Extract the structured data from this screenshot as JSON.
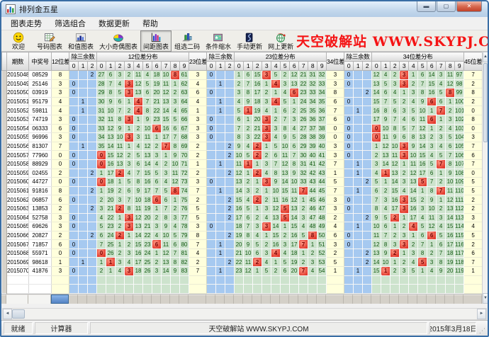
{
  "window": {
    "title": "排列金五星"
  },
  "menu": {
    "items": [
      "图表走势",
      "筛选组合",
      "数据更新",
      "帮助"
    ]
  },
  "toolbar": {
    "banner": "天空破解站 WWW.SKYPJ.COM",
    "banner_color": "#f51414",
    "buttons": [
      {
        "label": "欢迎",
        "icon": "welcome-smiley-icon",
        "active": false
      },
      {
        "label": "号码图表",
        "icon": "number-chart-icon",
        "active": false
      },
      {
        "label": "和值图表",
        "icon": "sum-chart-icon",
        "active": false
      },
      {
        "label": "大小奇偶图表",
        "icon": "size-parity-chart-icon",
        "active": false
      },
      {
        "label": "间距图表",
        "icon": "gap-chart-icon",
        "active": true
      },
      {
        "label": "组选二码",
        "icon": "group-select-two-icon",
        "active": false
      },
      {
        "label": "条件缩水",
        "icon": "condition-shrink-icon",
        "active": false
      },
      {
        "label": "手动更新",
        "icon": "manual-update-icon",
        "active": false
      },
      {
        "label": "网上更新",
        "icon": "online-update-icon",
        "active": false
      }
    ]
  },
  "table": {
    "headers": {
      "period": "期数",
      "number": "中奖号",
      "d12": "12位差",
      "rem": "除三余数",
      "dist12": "12位差分布",
      "d23": "23位差",
      "dist23": "23位差分布",
      "d34": "34位差",
      "dist34": "34位差分布",
      "d45": "45位差"
    },
    "remainder_cols": [
      "0",
      "1",
      "2"
    ],
    "dist_cols": [
      "0",
      "1",
      "2",
      "3",
      "4",
      "5",
      "6",
      "7",
      "8",
      "9"
    ],
    "row_fields": [
      "period",
      "number",
      "diff12",
      "rem12",
      "dist12",
      "diff23",
      "rem23",
      "dist23",
      "diff34",
      "rem34",
      "dist34",
      "diff45"
    ],
    "rows": [
      [
        "2015048",
        "08529",
        8,
        2,
        [
          27,
          6,
          3,
          2,
          11,
          4,
          18,
          10,
          8,
          61
        ],
        3,
        0,
        [
          1,
          6,
          15,
          3,
          5,
          2,
          12,
          21,
          31,
          32
        ],
        3,
        0,
        [
          12,
          4,
          2,
          3,
          1,
          6,
          14,
          3,
          11,
          97
        ],
        7
      ],
      [
        "2015049",
        "25146",
        3,
        0,
        [
          28,
          7,
          4,
          3,
          12,
          5,
          19,
          11,
          1,
          62
        ],
        4,
        1,
        [
          2,
          7,
          16,
          1,
          4,
          3,
          13,
          22,
          32,
          33
        ],
        3,
        0,
        [
          13,
          5,
          3,
          3,
          2,
          7,
          15,
          4,
          12,
          98
        ],
        2
      ],
      [
        "2015050",
        "03919",
        3,
        0,
        [
          29,
          8,
          5,
          3,
          13,
          6,
          20,
          12,
          2,
          63
        ],
        6,
        0,
        [
          3,
          8,
          17,
          2,
          1,
          4,
          6,
          23,
          33,
          34
        ],
        8,
        2,
        [
          14,
          6,
          4,
          1,
          3,
          8,
          16,
          5,
          8,
          99
        ],
        8
      ],
      [
        "2015051",
        "95179",
        4,
        1,
        [
          30,
          9,
          6,
          1,
          4,
          7,
          21,
          13,
          3,
          64
        ],
        4,
        1,
        [
          4,
          9,
          18,
          3,
          4,
          5,
          1,
          24,
          34,
          35
        ],
        6,
        0,
        [
          15,
          7,
          5,
          2,
          4,
          9,
          6,
          6,
          1,
          100
        ],
        2
      ],
      [
        "2015052",
        "59811",
        4,
        1,
        [
          31,
          10,
          7,
          2,
          4,
          8,
          22,
          14,
          4,
          65
        ],
        1,
        1,
        [
          5,
          1,
          19,
          4,
          1,
          6,
          2,
          25,
          35,
          36
        ],
        7,
        1,
        [
          16,
          8,
          6,
          3,
          5,
          10,
          1,
          7,
          2,
          101
        ],
        0
      ],
      [
        "2015053",
        "74719",
        3,
        0,
        [
          32,
          11,
          8,
          3,
          1,
          9,
          23,
          15,
          5,
          66
        ],
        3,
        0,
        [
          6,
          1,
          20,
          3,
          2,
          7,
          3,
          26,
          36,
          37
        ],
        6,
        0,
        [
          17,
          9,
          7,
          4,
          6,
          11,
          6,
          1,
          3,
          102
        ],
        8
      ],
      [
        "2015054",
        "06333",
        6,
        0,
        [
          33,
          12,
          9,
          1,
          2,
          10,
          6,
          16,
          6,
          67
        ],
        3,
        0,
        [
          7,
          2,
          21,
          3,
          3,
          8,
          4,
          27,
          37,
          38
        ],
        0,
        0,
        [
          0,
          10,
          8,
          5,
          7,
          12,
          1,
          2,
          4,
          103
        ],
        0
      ],
      [
        "2015055",
        "96996",
        3,
        0,
        [
          34,
          13,
          10,
          3,
          3,
          11,
          1,
          17,
          7,
          68
        ],
        3,
        0,
        [
          8,
          3,
          22,
          3,
          4,
          9,
          5,
          28,
          38,
          39
        ],
        0,
        0,
        [
          0,
          11,
          9,
          6,
          8,
          13,
          2,
          3,
          5,
          104
        ],
        3
      ],
      [
        "2015056",
        "81307",
        7,
        1,
        [
          35,
          14,
          11,
          1,
          4,
          12,
          2,
          7,
          8,
          69
        ],
        2,
        2,
        [
          9,
          4,
          2,
          1,
          5,
          10,
          6,
          29,
          39,
          40
        ],
        3,
        0,
        [
          1,
          12,
          10,
          3,
          9,
          14,
          3,
          4,
          6,
          105
        ],
        7
      ],
      [
        "2015057",
        "77960",
        0,
        0,
        [
          0,
          15,
          12,
          2,
          5,
          13,
          3,
          1,
          9,
          70
        ],
        2,
        2,
        [
          10,
          5,
          2,
          2,
          6,
          11,
          7,
          30,
          40,
          41
        ],
        3,
        0,
        [
          2,
          13,
          11,
          3,
          10,
          15,
          4,
          5,
          7,
          106
        ],
        6
      ],
      [
        "2015058",
        "88929",
        0,
        0,
        [
          0,
          16,
          13,
          3,
          6,
          14,
          4,
          2,
          10,
          71
        ],
        1,
        1,
        [
          11,
          1,
          1,
          3,
          7,
          12,
          8,
          31,
          41,
          42
        ],
        7,
        1,
        [
          3,
          14,
          12,
          1,
          11,
          16,
          5,
          7,
          8,
          107
        ],
        7
      ],
      [
        "2015059",
        "02455",
        2,
        2,
        [
          1,
          17,
          2,
          4,
          7,
          15,
          5,
          3,
          11,
          72
        ],
        2,
        2,
        [
          12,
          1,
          2,
          4,
          8,
          13,
          9,
          32,
          42,
          43
        ],
        1,
        1,
        [
          4,
          1,
          13,
          2,
          12,
          17,
          6,
          1,
          9,
          108
        ],
        0
      ],
      [
        "2015060",
        "44727",
        0,
        0,
        [
          0,
          18,
          1,
          5,
          8,
          16,
          6,
          4,
          12,
          73
        ],
        3,
        0,
        [
          13,
          2,
          1,
          3,
          9,
          14,
          10,
          33,
          43,
          44
        ],
        5,
        2,
        [
          5,
          1,
          14,
          3,
          13,
          5,
          7,
          2,
          10,
          109
        ],
        5
      ],
      [
        "2015061",
        "91816",
        8,
        2,
        [
          1,
          19,
          2,
          6,
          9,
          17,
          7,
          5,
          8,
          74
        ],
        7,
        1,
        [
          14,
          3,
          2,
          1,
          10,
          15,
          11,
          7,
          44,
          45
        ],
        7,
        1,
        [
          6,
          2,
          15,
          4,
          14,
          1,
          8,
          7,
          11,
          110
        ],
        5
      ],
      [
        "2015062",
        "06857",
        6,
        0,
        [
          2,
          20,
          3,
          7,
          10,
          18,
          6,
          6,
          1,
          75
        ],
        2,
        2,
        [
          15,
          4,
          2,
          2,
          11,
          16,
          12,
          1,
          45,
          46
        ],
        3,
        0,
        [
          7,
          3,
          16,
          3,
          15,
          2,
          9,
          1,
          12,
          111
        ],
        2
      ],
      [
        "2015063",
        "13853",
        2,
        2,
        [
          3,
          21,
          2,
          8,
          11,
          19,
          1,
          7,
          2,
          76
        ],
        5,
        2,
        [
          16,
          5,
          1,
          3,
          12,
          5,
          13,
          2,
          46,
          47
        ],
        3,
        0,
        [
          8,
          4,
          17,
          3,
          16,
          3,
          10,
          2,
          13,
          112
        ],
        2
      ],
      [
        "2015064",
        "52758",
        3,
        0,
        [
          4,
          22,
          1,
          3,
          12,
          20,
          2,
          8,
          3,
          77
        ],
        5,
        2,
        [
          17,
          6,
          2,
          4,
          13,
          5,
          14,
          3,
          47,
          48
        ],
        2,
        2,
        [
          9,
          5,
          2,
          1,
          17,
          4,
          11,
          3,
          14,
          113
        ],
        3
      ],
      [
        "2015065",
        "69626",
        3,
        0,
        [
          5,
          23,
          2,
          3,
          13,
          21,
          3,
          9,
          4,
          78
        ],
        3,
        0,
        [
          18,
          7,
          3,
          3,
          14,
          1,
          15,
          4,
          48,
          49
        ],
        4,
        1,
        [
          10,
          6,
          1,
          2,
          4,
          5,
          12,
          4,
          15,
          114
        ],
        4
      ],
      [
        "2015066",
        "20827",
        2,
        2,
        [
          6,
          24,
          2,
          1,
          14,
          22,
          4,
          10,
          5,
          79
        ],
        8,
        2,
        [
          19,
          8,
          4,
          1,
          15,
          2,
          16,
          5,
          8,
          50
        ],
        6,
        0,
        [
          11,
          7,
          2,
          3,
          1,
          6,
          6,
          5,
          16,
          115
        ],
        5
      ],
      [
        "2015067",
        "71857",
        6,
        0,
        [
          7,
          25,
          1,
          2,
          15,
          23,
          6,
          11,
          6,
          80
        ],
        7,
        1,
        [
          20,
          9,
          5,
          2,
          16,
          3,
          17,
          7,
          1,
          51
        ],
        3,
        0,
        [
          12,
          8,
          3,
          3,
          2,
          7,
          1,
          6,
          17,
          116
        ],
        2
      ],
      [
        "2015068",
        "55971",
        0,
        0,
        [
          0,
          26,
          2,
          3,
          16,
          24,
          1,
          12,
          7,
          81
        ],
        4,
        1,
        [
          21,
          10,
          6,
          3,
          4,
          4,
          18,
          1,
          2,
          52
        ],
        2,
        2,
        [
          13,
          9,
          2,
          1,
          3,
          8,
          2,
          7,
          18,
          117
        ],
        6
      ],
      [
        "2015069",
        "98618",
        1,
        1,
        [
          1,
          1,
          3,
          4,
          17,
          25,
          2,
          13,
          8,
          82
        ],
        2,
        2,
        [
          22,
          11,
          2,
          4,
          1,
          5,
          19,
          2,
          3,
          53
        ],
        5,
        2,
        [
          14,
          10,
          1,
          2,
          4,
          5,
          3,
          8,
          19,
          118
        ],
        7
      ],
      [
        "2015070",
        "41876",
        3,
        0,
        [
          2,
          1,
          4,
          3,
          18,
          26,
          3,
          14,
          9,
          83
        ],
        7,
        1,
        [
          23,
          12,
          1,
          5,
          2,
          6,
          20,
          7,
          4,
          54
        ],
        1,
        1,
        [
          15,
          1,
          2,
          3,
          5,
          1,
          4,
          9,
          20,
          119
        ],
        1
      ]
    ]
  },
  "statusbar": {
    "ready": "就绪",
    "calculator": "计算器",
    "site": "天空破解站 WWW.SKYPJ.COM",
    "date": "2015年3月18日"
  },
  "colors": {
    "hit_red": "#e23b2e",
    "remainder_blue": "#a6c9f0",
    "dist_green": "#cde3cd",
    "diff_yellow": "#ffffdc"
  }
}
